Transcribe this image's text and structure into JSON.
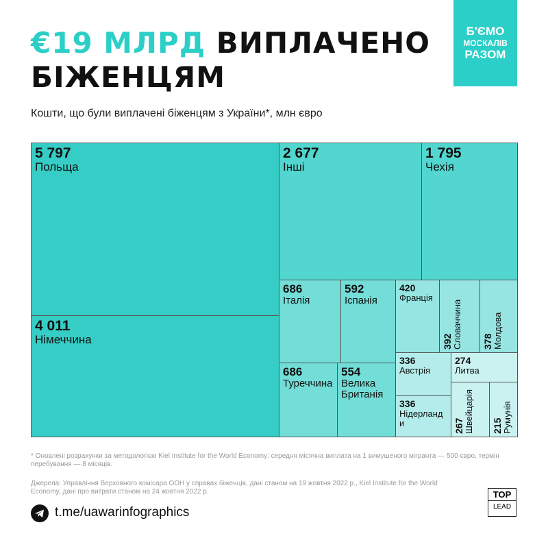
{
  "chart_data": {
    "type": "treemap",
    "title_highlight": "€19 МЛРД",
    "title": "ВИПЛАЧЕНО БІЖЕНЦЯМ",
    "subtitle": "Кошти, що були виплачені біженцям з України*, млн євро",
    "categories": [
      "Польща",
      "Німеччина",
      "Інші",
      "Чехія",
      "Італія",
      "Іспанія",
      "Франція",
      "Словаччина",
      "Молдова",
      "Туреччина",
      "Велика Британія",
      "Австрія",
      "Литва",
      "Нідерланди",
      "Швейцарія",
      "Румунія"
    ],
    "values": [
      5797,
      4011,
      2677,
      1795,
      686,
      592,
      420,
      392,
      378,
      686,
      554,
      336,
      274,
      336,
      267,
      215
    ],
    "value_labels": [
      "5 797",
      "4 011",
      "2 677",
      "1 795",
      "686",
      "592",
      "420",
      "392",
      "378",
      "686",
      "554",
      "336",
      "274",
      "336",
      "267",
      "215"
    ],
    "colors": [
      "#35cdc5",
      "#35cdc5",
      "#52d6cf",
      "#52d6cf",
      "#73ddd8",
      "#73ddd8",
      "#96e5e2",
      "#96e5e2",
      "#96e5e2",
      "#73ddd8",
      "#73ddd8",
      "#b3ecea",
      "#c9f2f0",
      "#b3ecea",
      "#c9f2f0",
      "#c9f2f0"
    ]
  },
  "badge": [
    "Б'ЄМО",
    "МОСКАЛІВ",
    "РАЗОМ"
  ],
  "footnote": "* Оновлені розрахунки за методологією Kiel Institute for the World Economy: середня місячна виплата на 1 вимушеного мігранта — 500 євро, термін перебування — 8 місяців.",
  "sources": "Джерела: Управління Верховного комісара ООН у справах біженців, дані станом на 19 жовтня 2022 р., Kiel Institute for the World Economy, дані про витрати станом на 24 жовтня 2022 р.",
  "link": "t.me/uawarinfographics",
  "logo": [
    "TOP",
    "LEAD"
  ]
}
